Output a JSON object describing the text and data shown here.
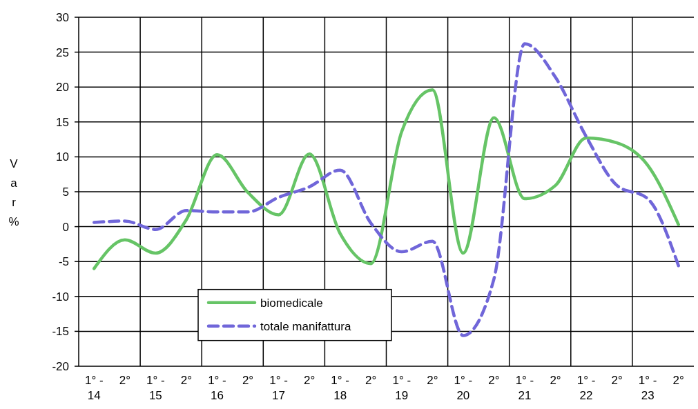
{
  "chart_data": {
    "type": "line",
    "ylabel": "Var %",
    "categories": [
      "1° -\n14",
      "2°",
      "1° -\n15",
      "2°",
      "1° -\n16",
      "2°",
      "1° -\n17",
      "2°",
      "1° -\n18",
      "2°",
      "1° -\n19",
      "2°",
      "1° -\n20",
      "2°",
      "1° -\n21",
      "2°",
      "1° -\n22",
      "2°",
      "1° -\n23",
      "2°"
    ],
    "series": [
      {
        "name": "biomedicale",
        "color": "#66c466",
        "line_style": "solid",
        "values": [
          -6.0,
          -1.9,
          -3.8,
          1.0,
          10.3,
          4.9,
          1.7,
          10.4,
          -1.0,
          -5.3,
          13.6,
          19.6,
          -3.8,
          15.6,
          4.0,
          5.9,
          12.7,
          12.0,
          8.8,
          0.3
        ]
      },
      {
        "name": "totale manifattura",
        "color": "#7066d9",
        "line_style": "dashed",
        "values": [
          0.6,
          0.8,
          -0.4,
          2.3,
          2.1,
          2.1,
          4.2,
          5.7,
          8.1,
          0.5,
          -3.6,
          -2.1,
          -15.6,
          -7.5,
          26.2,
          21.4,
          12.9,
          5.9,
          4.0,
          -5.6
        ]
      }
    ],
    "ylim": [
      -20,
      30
    ],
    "yticks": [
      -20,
      -15,
      -10,
      -5,
      0,
      5,
      10,
      15,
      20,
      25,
      30
    ],
    "grid": true,
    "legend": "bottom left",
    "marker": "none"
  }
}
